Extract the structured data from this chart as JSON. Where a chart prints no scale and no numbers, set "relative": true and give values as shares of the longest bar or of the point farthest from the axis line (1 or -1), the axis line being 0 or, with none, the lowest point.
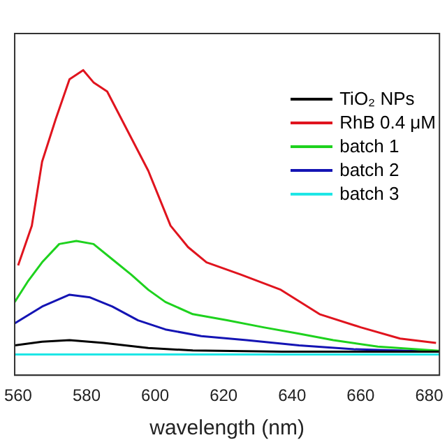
{
  "chart_data": {
    "type": "line",
    "xlabel": "wavelength (nm)",
    "relative": true,
    "xlim": [
      559,
      683
    ],
    "xticks": [
      560,
      580,
      600,
      620,
      640,
      660,
      680
    ],
    "grid": false,
    "legend": "top right",
    "marker": "none",
    "line_style": "solid",
    "series": [
      {
        "name": "TiO₂ NPs",
        "color": "#000000",
        "x": [
          559,
          567,
          575,
          585,
          598,
          611,
          637,
          683
        ],
        "values": [
          0.098,
          0.11,
          0.115,
          0.106,
          0.089,
          0.081,
          0.077,
          0.077
        ]
      },
      {
        "name": "RhB 0.4 μM",
        "color": "#e0141e",
        "x": [
          560,
          564,
          567,
          571,
          575,
          579,
          582,
          586,
          592,
          598,
          604.5,
          609.6,
          615,
          625,
          636.7,
          648,
          660,
          671.5,
          682
        ],
        "values": [
          0.36,
          0.49,
          0.7,
          0.84,
          0.97,
          1,
          0.96,
          0.93,
          0.8,
          0.67,
          0.49,
          0.42,
          0.37,
          0.33,
          0.28,
          0.2,
          0.157,
          0.12,
          0.106
        ]
      },
      {
        "name": "batch 1",
        "color": "#1ed21e",
        "x": [
          559,
          563,
          567,
          572,
          577,
          582,
          587.5,
          593,
          598,
          603,
          611,
          621,
          631.6,
          642,
          652,
          665,
          683
        ],
        "values": [
          0.24,
          0.31,
          0.37,
          0.43,
          0.44,
          0.43,
          0.38,
          0.33,
          0.28,
          0.24,
          0.2,
          0.18,
          0.157,
          0.136,
          0.115,
          0.094,
          0.08
        ]
      },
      {
        "name": "batch 2",
        "color": "#1414b4",
        "x": [
          559,
          567,
          575,
          581,
          587.5,
          595,
          603,
          613.5,
          626.7,
          642,
          658,
          683
        ],
        "values": [
          0.17,
          0.225,
          0.264,
          0.255,
          0.225,
          0.18,
          0.15,
          0.128,
          0.115,
          0.098,
          0.085,
          0.077
        ]
      },
      {
        "name": "batch 3",
        "color": "#1ee6e6",
        "x": [
          559,
          600,
          640,
          683
        ],
        "values": [
          0.068,
          0.068,
          0.068,
          0.068
        ]
      }
    ]
  }
}
